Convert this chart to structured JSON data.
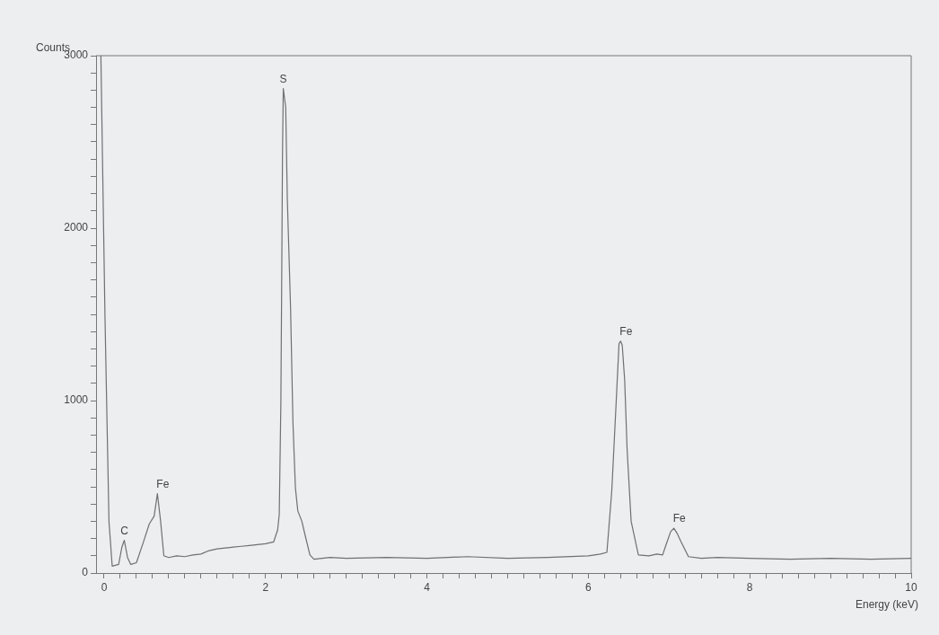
{
  "chart_data": {
    "type": "line",
    "xlabel": "Energy (keV)",
    "ylabel": "Counts",
    "x": [
      -0.04,
      0.01,
      0.06,
      0.1,
      0.18,
      0.22,
      0.25,
      0.29,
      0.33,
      0.4,
      0.48,
      0.56,
      0.62,
      0.66,
      0.7,
      0.74,
      0.8,
      0.9,
      1.0,
      1.1,
      1.2,
      1.3,
      1.4,
      1.5,
      1.6,
      1.7,
      1.8,
      1.9,
      2.0,
      2.1,
      2.15,
      2.17,
      2.19,
      2.2,
      2.21,
      2.22,
      2.25,
      2.27,
      2.31,
      2.34,
      2.37,
      2.4,
      2.45,
      2.49,
      2.55,
      2.6,
      2.8,
      3.0,
      3.5,
      4.0,
      4.5,
      5.0,
      5.5,
      6.0,
      6.15,
      6.23,
      6.29,
      6.34,
      6.38,
      6.4,
      6.42,
      6.45,
      6.48,
      6.53,
      6.62,
      6.75,
      6.85,
      6.92,
      6.96,
      7.02,
      7.06,
      7.1,
      7.15,
      7.24,
      7.4,
      7.6,
      8.0,
      8.5,
      9.0,
      9.5,
      10.0
    ],
    "series": [
      {
        "color": "#6e7173",
        "values": [
          3000,
          1500,
          300,
          40,
          50,
          150,
          190,
          90,
          50,
          60,
          170,
          285,
          330,
          460,
          300,
          100,
          90,
          100,
          95,
          105,
          110,
          130,
          140,
          145,
          150,
          155,
          160,
          165,
          170,
          180,
          250,
          340,
          985,
          1670,
          2420,
          2810,
          2700,
          2170,
          1540,
          870,
          495,
          360,
          300,
          220,
          105,
          80,
          90,
          85,
          90,
          85,
          95,
          85,
          90,
          100,
          110,
          120,
          475,
          945,
          1330,
          1345,
          1320,
          1120,
          720,
          300,
          105,
          100,
          110,
          105,
          160,
          240,
          260,
          230,
          180,
          95,
          85,
          90,
          85,
          80,
          85,
          80,
          85
        ]
      }
    ],
    "xlim": [
      -0.1,
      10
    ],
    "xticks": [
      0,
      {
        "value": 0.2,
        "label": null
      },
      {
        "value": 0.4,
        "label": null
      },
      {
        "value": 0.6,
        "label": null
      },
      {
        "value": 0.8,
        "label": null
      },
      {
        "value": 1,
        "label": null
      },
      {
        "value": 1.2,
        "label": null
      },
      {
        "value": 1.4,
        "label": null
      },
      {
        "value": 1.6,
        "label": null
      },
      {
        "value": 1.8,
        "label": null
      },
      2,
      {
        "value": 2.2,
        "label": null
      },
      {
        "value": 2.4,
        "label": null
      },
      {
        "value": 2.6,
        "label": null
      },
      {
        "value": 2.8,
        "label": null
      },
      {
        "value": 3,
        "label": null
      },
      {
        "value": 3.2,
        "label": null
      },
      {
        "value": 3.4,
        "label": null
      },
      {
        "value": 3.6,
        "label": null
      },
      {
        "value": 3.8,
        "label": null
      },
      4,
      {
        "value": 4.2,
        "label": null
      },
      {
        "value": 4.4,
        "label": null
      },
      {
        "value": 4.6,
        "label": null
      },
      {
        "value": 4.8,
        "label": null
      },
      {
        "value": 5,
        "label": null
      },
      {
        "value": 5.2,
        "label": null
      },
      {
        "value": 5.4,
        "label": null
      },
      {
        "value": 5.6,
        "label": null
      },
      {
        "value": 5.8,
        "label": null
      },
      6,
      {
        "value": 6.2,
        "label": null
      },
      {
        "value": 6.4,
        "label": null
      },
      {
        "value": 6.6,
        "label": null
      },
      {
        "value": 6.8,
        "label": null
      },
      {
        "value": 7,
        "label": null
      },
      {
        "value": 7.2,
        "label": null
      },
      {
        "value": 7.4,
        "label": null
      },
      {
        "value": 7.6,
        "label": null
      },
      {
        "value": 7.8,
        "label": null
      },
      8,
      {
        "value": 8.2,
        "label": null
      },
      {
        "value": 8.4,
        "label": null
      },
      {
        "value": 8.6,
        "label": null
      },
      {
        "value": 8.8,
        "label": null
      },
      {
        "value": 9,
        "label": null
      },
      {
        "value": 9.2,
        "label": null
      },
      {
        "value": 9.4,
        "label": null
      },
      {
        "value": 9.6,
        "label": null
      },
      {
        "value": 9.8,
        "label": null
      },
      10
    ],
    "ylim": [
      0,
      3000
    ],
    "yticks": [
      0,
      {
        "value": 100,
        "label": null
      },
      {
        "value": 200,
        "label": null
      },
      {
        "value": 300,
        "label": null
      },
      {
        "value": 400,
        "label": null
      },
      {
        "value": 500,
        "label": null
      },
      {
        "value": 600,
        "label": null
      },
      {
        "value": 700,
        "label": null
      },
      {
        "value": 800,
        "label": null
      },
      {
        "value": 900,
        "label": null
      },
      1000,
      {
        "value": 1100,
        "label": null
      },
      {
        "value": 1200,
        "label": null
      },
      {
        "value": 1300,
        "label": null
      },
      {
        "value": 1400,
        "label": null
      },
      {
        "value": 1500,
        "label": null
      },
      {
        "value": 1600,
        "label": null
      },
      {
        "value": 1700,
        "label": null
      },
      {
        "value": 1800,
        "label": null
      },
      {
        "value": 1900,
        "label": null
      },
      2000,
      {
        "value": 2100,
        "label": null
      },
      {
        "value": 2200,
        "label": null
      },
      {
        "value": 2300,
        "label": null
      },
      {
        "value": 2400,
        "label": null
      },
      {
        "value": 2500,
        "label": null
      },
      {
        "value": 2600,
        "label": null
      },
      {
        "value": 2700,
        "label": null
      },
      {
        "value": 2800,
        "label": null
      },
      {
        "value": 2900,
        "label": null
      },
      3000
    ],
    "annotations": [
      {
        "text": "C",
        "x": 0.25,
        "y": 190
      },
      {
        "text": "Fe",
        "x": 0.66,
        "y": 460
      },
      {
        "text": "S",
        "x": 2.22,
        "y": 2810
      },
      {
        "text": "Fe",
        "x": 6.4,
        "y": 1345
      },
      {
        "text": "Fe",
        "x": 7.06,
        "y": 260
      }
    ],
    "grid": false,
    "legend": false,
    "marker": "none",
    "line_style": "solid"
  }
}
